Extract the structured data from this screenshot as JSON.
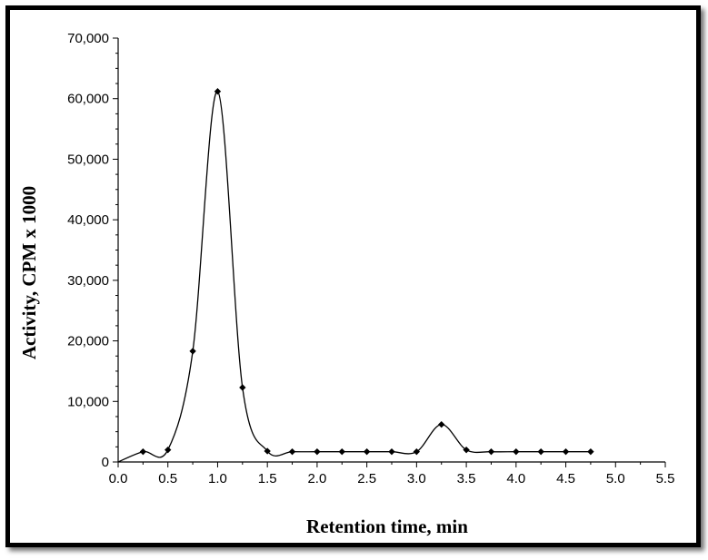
{
  "chart_data": {
    "type": "line",
    "title": "",
    "xlabel": "Retention time, min",
    "ylabel": "Activity, CPM x 1000",
    "xlim": [
      0,
      5.5
    ],
    "ylim": [
      0,
      70000
    ],
    "x_ticks": [
      "0.0",
      "0.5",
      "1.0",
      "1.5",
      "2.0",
      "2.5",
      "3.0",
      "3.5",
      "4.0",
      "4.5",
      "5.0",
      "5.5"
    ],
    "y_ticks": [
      "0",
      "10,000",
      "20,000",
      "30,000",
      "40,000",
      "50,000",
      "60,000",
      "70,000"
    ],
    "grid": false,
    "legend": "none",
    "series": [
      {
        "color": "#000000",
        "x": [
          0.0,
          0.25,
          0.5,
          0.75,
          1.0,
          1.25,
          1.5,
          1.75,
          2.0,
          2.25,
          2.5,
          2.75,
          3.0,
          3.25,
          3.5,
          3.75,
          4.0,
          4.25,
          4.5,
          4.75
        ],
        "y": [
          0,
          1700,
          2000,
          18300,
          61200,
          12300,
          1800,
          1700,
          1700,
          1700,
          1700,
          1700,
          1700,
          6200,
          2000,
          1700,
          1700,
          1700,
          1700,
          1700
        ]
      }
    ]
  }
}
